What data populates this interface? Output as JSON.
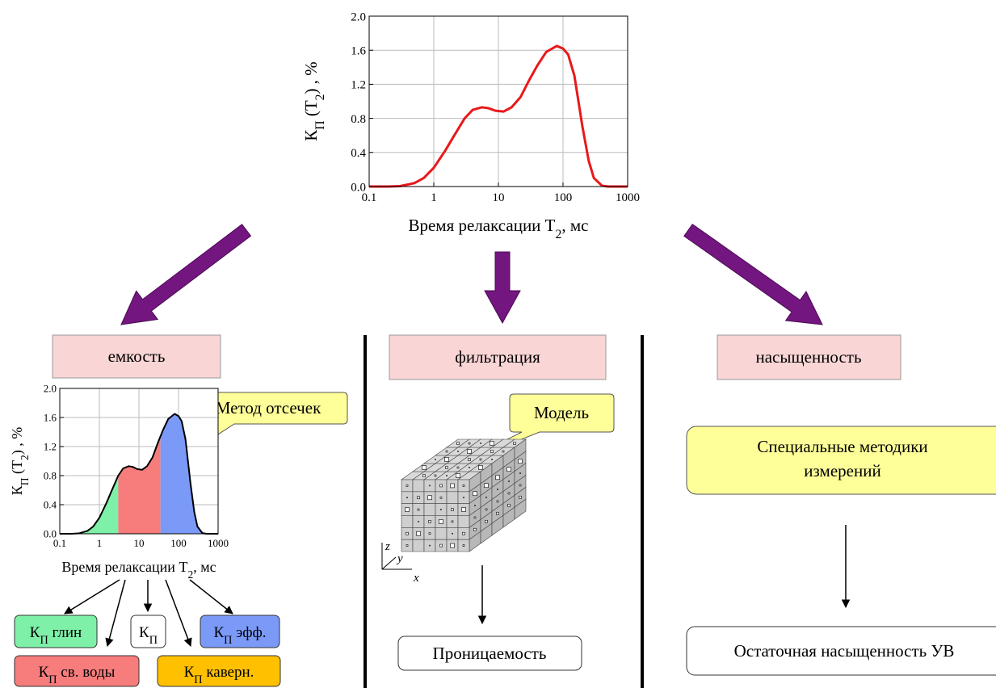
{
  "chart_data": [
    {
      "type": "line",
      "y_label": {
        "main": "К",
        "sub": "П",
        "rest": " (T",
        "sub2": "2",
        "rest2": ") , %"
      },
      "x_label": {
        "main": "Время релаксации T",
        "sub": "2",
        "rest": ", мс"
      },
      "log_x": true,
      "grid": true,
      "xlim": [
        0.1,
        1000
      ],
      "xticks": [
        0.1,
        1,
        10,
        100,
        1000
      ],
      "ylim": [
        0,
        2.0
      ],
      "yticks": [
        {
          "value": 0,
          "label": "0.0"
        },
        {
          "value": 0.4,
          "label": "0.4"
        },
        {
          "value": 0.8,
          "label": "0.8"
        },
        {
          "value": 1.2,
          "label": "1.2"
        },
        {
          "value": 1.6,
          "label": "1.6"
        },
        {
          "value": 2.0,
          "label": "2.0"
        }
      ],
      "series": [
        {
          "color": "#e8191b",
          "x": [
            0.1,
            0.2,
            0.3,
            0.5,
            0.7,
            1,
            1.5,
            2,
            3,
            4,
            5.5,
            7,
            9,
            12,
            16,
            22,
            30,
            40,
            55,
            80,
            100,
            120,
            150,
            200,
            250,
            300,
            400,
            500,
            1000
          ],
          "values": [
            0,
            0,
            0.005,
            0.04,
            0.1,
            0.22,
            0.42,
            0.58,
            0.8,
            0.9,
            0.93,
            0.92,
            0.89,
            0.88,
            0.93,
            1.05,
            1.25,
            1.42,
            1.58,
            1.65,
            1.62,
            1.55,
            1.3,
            0.7,
            0.3,
            0.1,
            0.01,
            0,
            0
          ]
        }
      ]
    },
    {
      "type": "area",
      "y_label": {
        "main": "К",
        "sub": "П",
        "rest": " (T",
        "sub2": "2",
        "rest2": ") , %"
      },
      "x_label": {
        "main": "Время релаксации T",
        "sub": "2",
        "rest": ", мс"
      },
      "log_x": true,
      "grid": true,
      "xlim": [
        0.1,
        1000
      ],
      "xticks": [
        0.1,
        1,
        10,
        100,
        1000
      ],
      "ylim": [
        0,
        2.0
      ],
      "yticks": [
        {
          "value": 0,
          "label": "0.0"
        },
        {
          "value": 0.4,
          "label": "0.4"
        },
        {
          "value": 0.8,
          "label": "0.8"
        },
        {
          "value": 1.2,
          "label": "1.2"
        },
        {
          "value": 1.6,
          "label": "1.6"
        },
        {
          "value": 2.0,
          "label": "2.0"
        }
      ],
      "cutoffs": [
        3,
        35
      ],
      "region_colors": [
        "#7ef0a8",
        "#f77c7c",
        "#7b9af8"
      ],
      "series": [
        {
          "color": "#000000",
          "x": [
            0.1,
            0.2,
            0.3,
            0.5,
            0.7,
            1,
            1.5,
            2,
            3,
            4,
            5.5,
            7,
            9,
            12,
            16,
            22,
            30,
            40,
            55,
            80,
            100,
            120,
            150,
            200,
            250,
            300,
            400,
            500,
            1000
          ],
          "values": [
            0,
            0,
            0.005,
            0.04,
            0.1,
            0.22,
            0.42,
            0.58,
            0.8,
            0.9,
            0.93,
            0.92,
            0.89,
            0.88,
            0.93,
            1.05,
            1.25,
            1.42,
            1.58,
            1.65,
            1.62,
            1.55,
            1.3,
            0.7,
            0.3,
            0.1,
            0.01,
            0,
            0
          ]
        }
      ]
    }
  ],
  "boxes": {
    "capacity": "емкость",
    "filtration": "фильтрация",
    "saturation": "насыщенность"
  },
  "callouts": {
    "cutoff_method": "Метод отсечек",
    "model": "Модель"
  },
  "special_methods": [
    "Специальные методики",
    "измерений"
  ],
  "permeability": "Проницаемость",
  "residual_saturation": "Остаточная насыщенность УВ",
  "porosity_boxes": [
    {
      "main": "К",
      "sub": "П",
      "rest": " глин"
    },
    {
      "main": "К",
      "sub": "П"
    },
    {
      "main": "К",
      "sub": "П",
      "rest": " эфф."
    },
    {
      "main": "К",
      "sub": "П",
      "rest": " св. воды"
    },
    {
      "main": "К",
      "sub": "П",
      "rest": " каверн."
    }
  ],
  "axes_labels": {
    "z": "z",
    "y": "y",
    "x": "x"
  }
}
